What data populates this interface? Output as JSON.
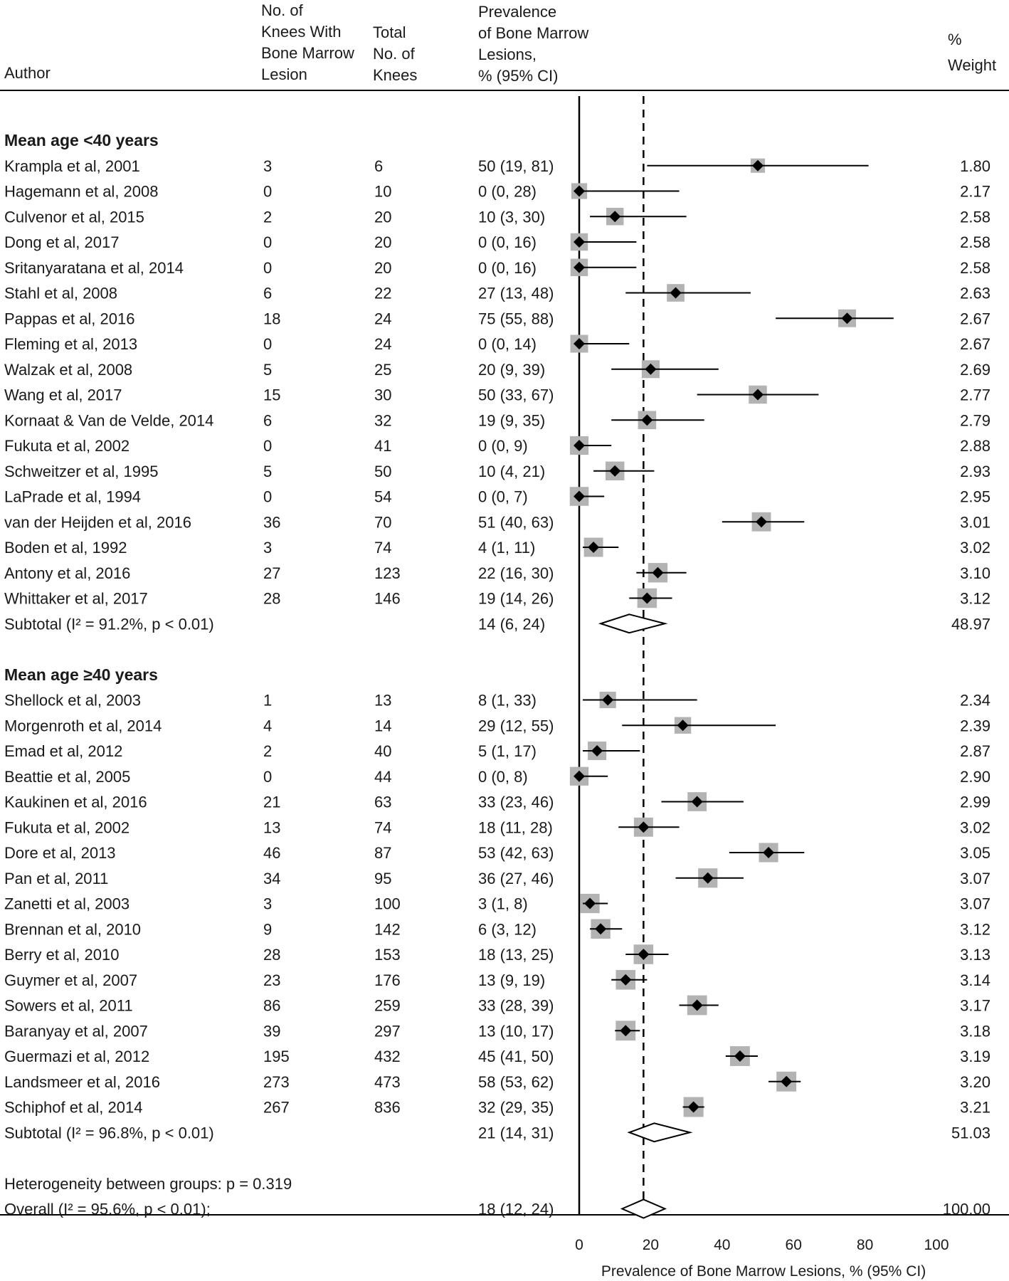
{
  "header": {
    "author": "Author",
    "knees_with_lesion": [
      "No. of",
      "Knees With",
      "Bone Marrow",
      "Lesion"
    ],
    "total_knees": [
      "Total",
      "No. of",
      "Knees"
    ],
    "prevalence": [
      "Prevalence",
      "of Bone Marrow",
      "Lesions,",
      "% (95% CI)"
    ],
    "weight": [
      "%",
      "Weight"
    ]
  },
  "chart_data": {
    "type": "forest",
    "xlabel": "Prevalence of Bone Marrow Lesions, % (95% CI)",
    "xlim": [
      0,
      100
    ],
    "xticks": [
      0,
      20,
      40,
      60,
      80,
      100
    ],
    "reference_line": 18,
    "groups": [
      {
        "title": "Mean age <40 years",
        "studies": [
          {
            "author": "Krampla et al, 2001",
            "n": "3",
            "total": "6",
            "ci_text": "50 (19, 81)",
            "est": 50,
            "lo": 19,
            "hi": 81,
            "weight": "1.80"
          },
          {
            "author": "Hagemann et al, 2008",
            "n": "0",
            "total": "10",
            "ci_text": "0 (0, 28)",
            "est": 0,
            "lo": 0,
            "hi": 28,
            "weight": "2.17"
          },
          {
            "author": "Culvenor et al, 2015",
            "n": "2",
            "total": "20",
            "ci_text": "10 (3, 30)",
            "est": 10,
            "lo": 3,
            "hi": 30,
            "weight": "2.58"
          },
          {
            "author": "Dong et al, 2017",
            "n": "0",
            "total": "20",
            "ci_text": "0 (0, 16)",
            "est": 0,
            "lo": 0,
            "hi": 16,
            "weight": "2.58"
          },
          {
            "author": "Sritanyaratana et al, 2014",
            "n": "0",
            "total": "20",
            "ci_text": "0 (0, 16)",
            "est": 0,
            "lo": 0,
            "hi": 16,
            "weight": "2.58"
          },
          {
            "author": "Stahl et al, 2008",
            "n": "6",
            "total": "22",
            "ci_text": "27 (13, 48)",
            "est": 27,
            "lo": 13,
            "hi": 48,
            "weight": "2.63"
          },
          {
            "author": "Pappas et al, 2016",
            "n": "18",
            "total": "24",
            "ci_text": "75 (55, 88)",
            "est": 75,
            "lo": 55,
            "hi": 88,
            "weight": "2.67"
          },
          {
            "author": "Fleming et al, 2013",
            "n": "0",
            "total": "24",
            "ci_text": "0 (0, 14)",
            "est": 0,
            "lo": 0,
            "hi": 14,
            "weight": "2.67"
          },
          {
            "author": "Walzak et al, 2008",
            "n": "5",
            "total": "25",
            "ci_text": "20 (9, 39)",
            "est": 20,
            "lo": 9,
            "hi": 39,
            "weight": "2.69"
          },
          {
            "author": "Wang et al, 2017",
            "n": "15",
            "total": "30",
            "ci_text": "50 (33, 67)",
            "est": 50,
            "lo": 33,
            "hi": 67,
            "weight": "2.77"
          },
          {
            "author": "Kornaat & Van de Velde, 2014",
            "n": "6",
            "total": "32",
            "ci_text": "19 (9, 35)",
            "est": 19,
            "lo": 9,
            "hi": 35,
            "weight": "2.79"
          },
          {
            "author": "Fukuta et al, 2002",
            "n": "0",
            "total": "41",
            "ci_text": "0 (0, 9)",
            "est": 0,
            "lo": 0,
            "hi": 9,
            "weight": "2.88"
          },
          {
            "author": "Schweitzer et al, 1995",
            "n": "5",
            "total": "50",
            "ci_text": "10 (4, 21)",
            "est": 10,
            "lo": 4,
            "hi": 21,
            "weight": "2.93"
          },
          {
            "author": "LaPrade et al, 1994",
            "n": "0",
            "total": "54",
            "ci_text": "0 (0, 7)",
            "est": 0,
            "lo": 0,
            "hi": 7,
            "weight": "2.95"
          },
          {
            "author": "van der Heijden et al, 2016",
            "n": "36",
            "total": "70",
            "ci_text": "51 (40, 63)",
            "est": 51,
            "lo": 40,
            "hi": 63,
            "weight": "3.01"
          },
          {
            "author": "Boden et al, 1992",
            "n": "3",
            "total": "74",
            "ci_text": "4 (1, 11)",
            "est": 4,
            "lo": 1,
            "hi": 11,
            "weight": "3.02"
          },
          {
            "author": "Antony et al, 2016",
            "n": "27",
            "total": "123",
            "ci_text": "22 (16, 30)",
            "est": 22,
            "lo": 16,
            "hi": 30,
            "weight": "3.10"
          },
          {
            "author": "Whittaker et al, 2017",
            "n": "28",
            "total": "146",
            "ci_text": "19 (14, 26)",
            "est": 19,
            "lo": 14,
            "hi": 26,
            "weight": "3.12"
          }
        ],
        "subtotal": {
          "label": "Subtotal  (I² = 91.2%, p < 0.01)",
          "ci_text": "14 (6, 24)",
          "est": 14,
          "lo": 6,
          "hi": 24,
          "weight": "48.97"
        }
      },
      {
        "title": "Mean age ≥40 years",
        "studies": [
          {
            "author": "Shellock et al, 2003",
            "n": "1",
            "total": "13",
            "ci_text": "8 (1, 33)",
            "est": 8,
            "lo": 1,
            "hi": 33,
            "weight": "2.34"
          },
          {
            "author": "Morgenroth et al, 2014",
            "n": "4",
            "total": "14",
            "ci_text": "29 (12, 55)",
            "est": 29,
            "lo": 12,
            "hi": 55,
            "weight": "2.39"
          },
          {
            "author": "Emad et al, 2012",
            "n": "2",
            "total": "40",
            "ci_text": "5 (1, 17)",
            "est": 5,
            "lo": 1,
            "hi": 17,
            "weight": "2.87"
          },
          {
            "author": "Beattie et al, 2005",
            "n": "0",
            "total": "44",
            "ci_text": "0 (0, 8)",
            "est": 0,
            "lo": 0,
            "hi": 8,
            "weight": "2.90"
          },
          {
            "author": "Kaukinen et al, 2016",
            "n": "21",
            "total": "63",
            "ci_text": "33 (23, 46)",
            "est": 33,
            "lo": 23,
            "hi": 46,
            "weight": "2.99"
          },
          {
            "author": "Fukuta et al, 2002",
            "n": "13",
            "total": "74",
            "ci_text": "18 (11, 28)",
            "est": 18,
            "lo": 11,
            "hi": 28,
            "weight": "3.02"
          },
          {
            "author": "Dore et al, 2013",
            "n": "46",
            "total": "87",
            "ci_text": "53 (42, 63)",
            "est": 53,
            "lo": 42,
            "hi": 63,
            "weight": "3.05"
          },
          {
            "author": "Pan et al, 2011",
            "n": "34",
            "total": "95",
            "ci_text": "36 (27, 46)",
            "est": 36,
            "lo": 27,
            "hi": 46,
            "weight": "3.07"
          },
          {
            "author": "Zanetti et al, 2003",
            "n": "3",
            "total": "100",
            "ci_text": "3 (1, 8)",
            "est": 3,
            "lo": 1,
            "hi": 8,
            "weight": "3.07"
          },
          {
            "author": "Brennan et al, 2010",
            "n": "9",
            "total": "142",
            "ci_text": "6 (3, 12)",
            "est": 6,
            "lo": 3,
            "hi": 12,
            "weight": "3.12"
          },
          {
            "author": "Berry et al, 2010",
            "n": "28",
            "total": "153",
            "ci_text": "18 (13, 25)",
            "est": 18,
            "lo": 13,
            "hi": 25,
            "weight": "3.13"
          },
          {
            "author": "Guymer et al, 2007",
            "n": "23",
            "total": "176",
            "ci_text": "13 (9, 19)",
            "est": 13,
            "lo": 9,
            "hi": 19,
            "weight": "3.14"
          },
          {
            "author": "Sowers et al, 2011",
            "n": "86",
            "total": "259",
            "ci_text": "33 (28, 39)",
            "est": 33,
            "lo": 28,
            "hi": 39,
            "weight": "3.17"
          },
          {
            "author": "Baranyay et al, 2007",
            "n": "39",
            "total": "297",
            "ci_text": "13 (10, 17)",
            "est": 13,
            "lo": 10,
            "hi": 17,
            "weight": "3.18"
          },
          {
            "author": "Guermazi et al, 2012",
            "n": "195",
            "total": "432",
            "ci_text": "45 (41, 50)",
            "est": 45,
            "lo": 41,
            "hi": 50,
            "weight": "3.19"
          },
          {
            "author": "Landsmeer et al, 2016",
            "n": "273",
            "total": "473",
            "ci_text": "58 (53, 62)",
            "est": 58,
            "lo": 53,
            "hi": 62,
            "weight": "3.20"
          },
          {
            "author": "Schiphof et al, 2014",
            "n": "267",
            "total": "836",
            "ci_text": "32 (29, 35)",
            "est": 32,
            "lo": 29,
            "hi": 35,
            "weight": "3.21"
          }
        ],
        "subtotal": {
          "label": "Subtotal  (I² = 96.8%, p < 0.01)",
          "ci_text": "21 (14, 31)",
          "est": 21,
          "lo": 14,
          "hi": 31,
          "weight": "51.03"
        }
      }
    ],
    "heterogeneity": "Heterogeneity between groups: p = 0.319",
    "overall": {
      "label": "Overall  (I² = 95.6%, p < 0.01);",
      "ci_text": "18 (12, 24)",
      "est": 18,
      "lo": 12,
      "hi": 24,
      "weight": "100.00"
    }
  },
  "colors": {
    "text": "#1a1a1a",
    "weight_box": "#b3b3b3",
    "marker": "#000000",
    "line": "#000000"
  }
}
